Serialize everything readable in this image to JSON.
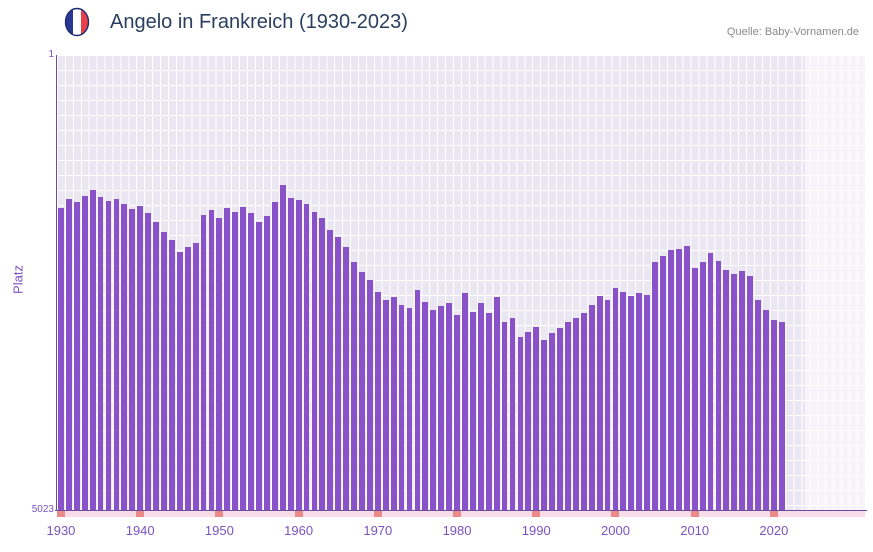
{
  "header": {
    "title": "Angelo in Frankreich (1930-2023)",
    "source": "Quelle: Baby-Vornamen.de",
    "flag_icon": "france-flag-icon"
  },
  "chart_data": {
    "type": "bar",
    "title": "Angelo in Frankreich (1930-2023)",
    "xlabel": "",
    "ylabel": "Platz",
    "y_axis_inverted": true,
    "ylim": [
      1,
      5023
    ],
    "y_tick_labels": [
      "1",
      "5023"
    ],
    "x_ticks": [
      1930,
      1940,
      1950,
      1960,
      1970,
      1980,
      1990,
      2000,
      2010,
      2020
    ],
    "x_domain": [
      1929.5,
      2031.5
    ],
    "grid": true,
    "legend": "none",
    "no_data_years": [
      2022,
      2023
    ],
    "years": [
      1930,
      1931,
      1932,
      1933,
      1934,
      1935,
      1936,
      1937,
      1938,
      1939,
      1940,
      1941,
      1942,
      1943,
      1944,
      1945,
      1946,
      1947,
      1948,
      1949,
      1950,
      1951,
      1952,
      1953,
      1954,
      1955,
      1956,
      1957,
      1958,
      1959,
      1960,
      1961,
      1962,
      1963,
      1964,
      1965,
      1966,
      1967,
      1968,
      1969,
      1970,
      1971,
      1972,
      1973,
      1974,
      1975,
      1976,
      1977,
      1978,
      1979,
      1980,
      1981,
      1982,
      1983,
      1984,
      1985,
      1986,
      1987,
      1988,
      1989,
      1990,
      1991,
      1992,
      1993,
      1994,
      1995,
      1996,
      1997,
      1998,
      1999,
      2000,
      2001,
      2002,
      2003,
      2004,
      2005,
      2006,
      2007,
      2008,
      2009,
      2010,
      2011,
      2012,
      2013,
      2014,
      2015,
      2016,
      2017,
      2018,
      2019,
      2020,
      2021,
      2022,
      2023
    ],
    "ranks": [
      1690,
      1590,
      1620,
      1555,
      1490,
      1570,
      1610,
      1585,
      1640,
      1700,
      1670,
      1745,
      1845,
      1955,
      2040,
      2175,
      2120,
      2080,
      1770,
      1710,
      1800,
      1690,
      1735,
      1680,
      1745,
      1845,
      1780,
      1620,
      1435,
      1580,
      1600,
      1645,
      1735,
      1800,
      1930,
      2010,
      2120,
      2285,
      2395,
      2485,
      2615,
      2705,
      2670,
      2760,
      2795,
      2595,
      2725,
      2815,
      2770,
      2740,
      2870,
      2625,
      2835,
      2740,
      2850,
      2670,
      2945,
      2905,
      3115,
      3060,
      3005,
      3145,
      3070,
      3015,
      2945,
      2905,
      2850,
      2760,
      2660,
      2705,
      2570,
      2615,
      2660,
      2625,
      2650,
      2285,
      2220,
      2150,
      2140,
      2110,
      2350,
      2285,
      2185,
      2275,
      2375,
      2415,
      2385,
      2440,
      2705,
      2815,
      2925,
      2945,
      null,
      null
    ],
    "colors": {
      "bar": "#8a52c8",
      "axis_text": "#7b52c0",
      "plot_bg": "#eae7f3",
      "tick_red": "#ec8989",
      "strip_pink": "#f8dce8",
      "title": "#2a3f5f",
      "source": "#8a8a8a",
      "axis_line": "#6a4ba0"
    }
  }
}
